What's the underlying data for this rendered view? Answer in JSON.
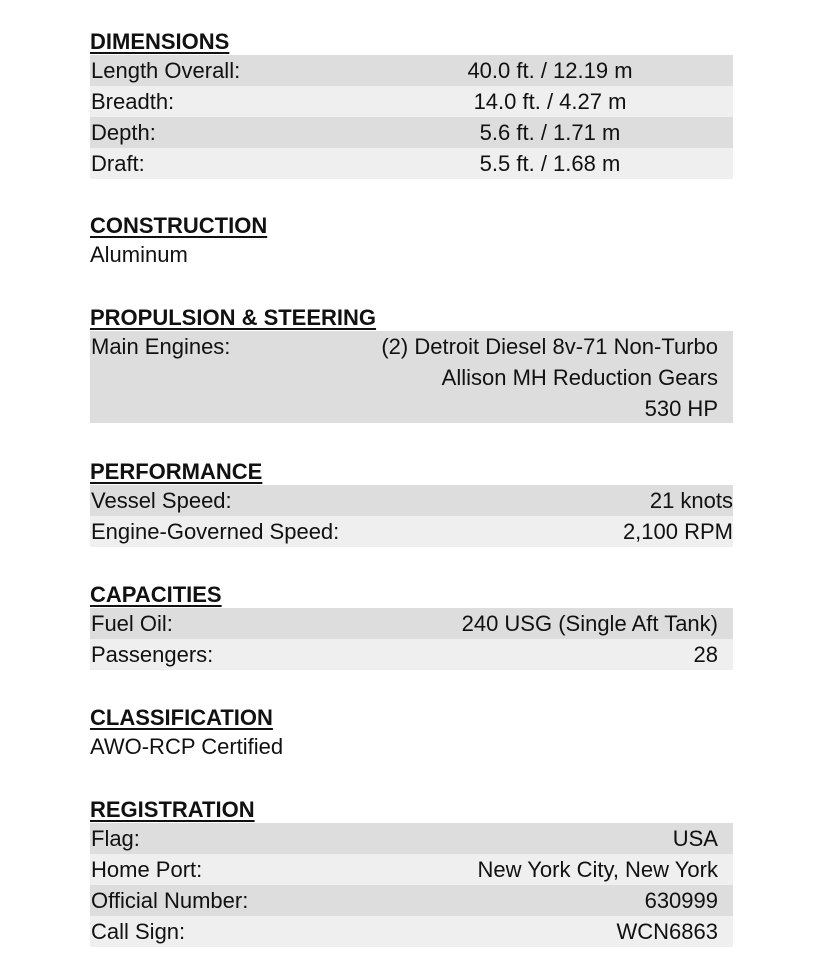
{
  "dimensions": {
    "title": "DIMENSIONS",
    "rows": [
      {
        "label": "Length Overall:",
        "value": "40.0 ft. / 12.19 m"
      },
      {
        "label": "Breadth:",
        "value": "14.0 ft. / 4.27 m"
      },
      {
        "label": "Depth:",
        "value": "5.6 ft. / 1.71 m"
      },
      {
        "label": "Draft:",
        "value": "5.5 ft. / 1.68 m"
      }
    ]
  },
  "construction": {
    "title": "CONSTRUCTION",
    "text": "Aluminum"
  },
  "propulsion": {
    "title": "PROPULSION & STEERING",
    "label": "Main Engines:",
    "lines": [
      "(2) Detroit Diesel 8v-71 Non-Turbo",
      "Allison MH Reduction Gears",
      "530 HP"
    ]
  },
  "performance": {
    "title": "PERFORMANCE",
    "rows": [
      {
        "label": "Vessel Speed:",
        "value": "21 knots"
      },
      {
        "label": "Engine-Governed Speed:",
        "value": "2,100 RPM"
      }
    ]
  },
  "capacities": {
    "title": "CAPACITIES",
    "rows": [
      {
        "label": "Fuel Oil:",
        "value": "240 USG (Single Aft Tank)"
      },
      {
        "label": "Passengers:",
        "value": "28"
      }
    ]
  },
  "classification": {
    "title": "CLASSIFICATION",
    "text": "AWO-RCP Certified"
  },
  "registration": {
    "title": "REGISTRATION",
    "rows": [
      {
        "label": "Flag:",
        "value": "USA"
      },
      {
        "label": "Home Port:",
        "value": "New York City, New York"
      },
      {
        "label": "Official Number:",
        "value": "630999"
      },
      {
        "label": "Call Sign:",
        "value": "WCN6863"
      }
    ]
  },
  "colors": {
    "row_dark": "#dddddd",
    "row_light": "#efefef"
  }
}
